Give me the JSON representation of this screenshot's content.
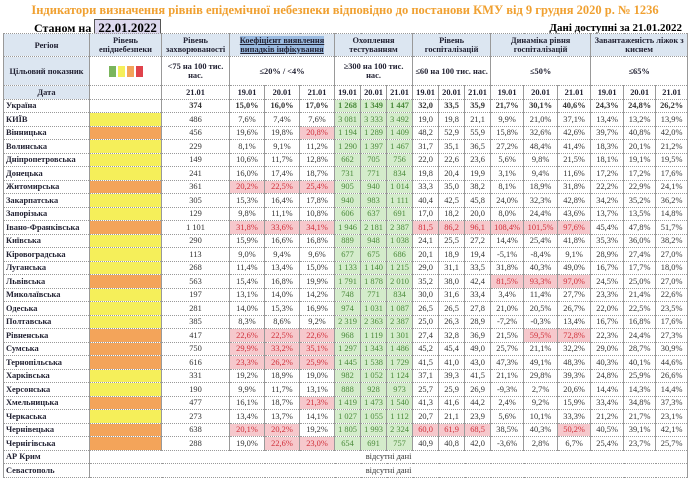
{
  "title": "Індикатори визначення рівнів епідемічної небезпеки відповідно до постанови КМУ від 9 грудня 2020 р. № 1236",
  "as_of_label": "Станом на",
  "as_of_date": "22.01.2022",
  "available_label": "Дані доступні за",
  "available_date": "21.01.2022",
  "colors": {
    "yellow": "#f5ef5a",
    "orange": "#f3a45a",
    "red_bg": "#f6c8cc",
    "green_bg": "#d4eccb",
    "legend": [
      "#7ab55c",
      "#f5ef5a",
      "#f3a45a",
      "#e0434b"
    ]
  },
  "headers": {
    "region": "Регіон",
    "level": "Рівень епіднебезпеки",
    "incidence": "Рівень захворюваності",
    "coef": "Коефіцієнт виявлення випадків інфікування",
    "testing": "Охоплення тестуванням",
    "hosp": "Рівень госпіталізацій",
    "dyn": "Динаміка рівня госпіталізацій",
    "oxygen": "Завантаженість ліжок з киснем",
    "target": "Цільовий показник",
    "t_incidence": "<75 на 100 тис. нас.",
    "t_coef": "≤20% / <4%",
    "t_testing": "≥300 на 100 тис. нас.",
    "t_hosp": "≤60 на 100 тис. нас.",
    "t_dyn": "≤50%",
    "t_oxygen": "≤65%",
    "date": "Дата",
    "inc_date": "21.01",
    "dates": [
      "19.01",
      "20.01",
      "21.01"
    ]
  },
  "no_data": "відсутні дані",
  "rows": [
    {
      "name": "Україна",
      "level": "none",
      "inc": "374",
      "v": [
        "15,0%",
        "16,0%",
        "17,0%",
        "1 268",
        "1 349",
        "1 447",
        "32,0",
        "33,5",
        "35,9",
        "21,7%",
        "30,1%",
        "40,6%",
        "24,3%",
        "24,8%",
        "26,2%"
      ],
      "red": []
    },
    {
      "name": "КИЇВ",
      "level": "yellow",
      "inc": "486",
      "v": [
        "7,6%",
        "7,4%",
        "7,6%",
        "3 081",
        "3 333",
        "3 492",
        "19,0",
        "19,8",
        "21,1",
        "9,9%",
        "21,0%",
        "37,1%",
        "13,4%",
        "13,2%",
        "13,9%"
      ],
      "red": []
    },
    {
      "name": "Вінницька",
      "level": "orange",
      "inc": "456",
      "v": [
        "19,6%",
        "19,8%",
        "20,8%",
        "1 194",
        "1 289",
        "1 409",
        "48,2",
        "52,9",
        "55,9",
        "15,8%",
        "32,6%",
        "42,6%",
        "39,7%",
        "40,8%",
        "42,0%"
      ],
      "red": [
        2
      ]
    },
    {
      "name": "Волинська",
      "level": "yellow",
      "inc": "229",
      "v": [
        "8,1%",
        "9,1%",
        "11,2%",
        "1 290",
        "1 397",
        "1 467",
        "31,7",
        "35,1",
        "36,5",
        "27,2%",
        "48,4%",
        "41,4%",
        "18,3%",
        "20,1%",
        "21,2%"
      ],
      "red": []
    },
    {
      "name": "Дніпропетровська",
      "level": "yellow",
      "inc": "149",
      "v": [
        "10,6%",
        "11,7%",
        "12,8%",
        "662",
        "705",
        "756",
        "22,0",
        "22,6",
        "23,6",
        "5,6%",
        "9,8%",
        "21,5%",
        "18,1%",
        "19,1%",
        "19,5%"
      ],
      "red": []
    },
    {
      "name": "Донецька",
      "level": "yellow",
      "inc": "241",
      "v": [
        "16,0%",
        "17,4%",
        "18,7%",
        "731",
        "771",
        "834",
        "19,8",
        "20,4",
        "19,9",
        "3,1%",
        "9,4%",
        "11,6%",
        "17,2%",
        "17,2%",
        "17,6%"
      ],
      "red": []
    },
    {
      "name": "Житомирська",
      "level": "orange",
      "inc": "361",
      "v": [
        "20,2%",
        "22,5%",
        "25,4%",
        "905",
        "940",
        "1 014",
        "33,3",
        "35,0",
        "38,2",
        "8,1%",
        "18,9%",
        "31,8%",
        "22,2%",
        "22,9%",
        "24,1%"
      ],
      "red": [
        0,
        1,
        2
      ]
    },
    {
      "name": "Закарпатська",
      "level": "yellow",
      "inc": "305",
      "v": [
        "15,3%",
        "16,4%",
        "17,8%",
        "940",
        "983",
        "1 111",
        "40,4",
        "42,5",
        "45,8",
        "24,0%",
        "32,3%",
        "42,8%",
        "34,2%",
        "35,2%",
        "36,2%"
      ],
      "red": []
    },
    {
      "name": "Запорізька",
      "level": "yellow",
      "inc": "129",
      "v": [
        "9,8%",
        "11,1%",
        "10,8%",
        "606",
        "637",
        "691",
        "17,0",
        "18,2",
        "20,0",
        "8,0%",
        "24,4%",
        "43,6%",
        "13,7%",
        "13,5%",
        "14,8%"
      ],
      "red": []
    },
    {
      "name": "Івано-Франківська",
      "level": "orange",
      "inc": "1 101",
      "v": [
        "31,8%",
        "33,6%",
        "34,1%",
        "1 946",
        "2 181",
        "2 387",
        "81,5",
        "86,2",
        "96,1",
        "108,4%",
        "101,5%",
        "97,6%",
        "45,4%",
        "47,8%",
        "51,7%"
      ],
      "red": [
        0,
        1,
        2,
        6,
        7,
        8,
        9,
        10,
        11
      ]
    },
    {
      "name": "Київська",
      "level": "yellow",
      "inc": "290",
      "v": [
        "15,9%",
        "16,6%",
        "16,8%",
        "889",
        "948",
        "1 038",
        "24,1",
        "25,5",
        "27,2",
        "14,4%",
        "25,4%",
        "41,8%",
        "35,3%",
        "36,0%",
        "38,2%"
      ],
      "red": []
    },
    {
      "name": "Кіровоградська",
      "level": "yellow",
      "inc": "113",
      "v": [
        "9,0%",
        "9,4%",
        "9,6%",
        "677",
        "675",
        "686",
        "20,1",
        "18,9",
        "19,4",
        "-5,1%",
        "-8,4%",
        "9,1%",
        "28,9%",
        "27,4%",
        "27,0%"
      ],
      "red": []
    },
    {
      "name": "Луганська",
      "level": "yellow",
      "inc": "268",
      "v": [
        "11,4%",
        "13,4%",
        "15,0%",
        "1 133",
        "1 140",
        "1 215",
        "29,0",
        "31,1",
        "33,5",
        "31,8%",
        "40,3%",
        "49,0%",
        "16,7%",
        "17,7%",
        "18,0%"
      ],
      "red": []
    },
    {
      "name": "Львівська",
      "level": "orange",
      "inc": "563",
      "v": [
        "15,4%",
        "16,8%",
        "19,9%",
        "1 791",
        "1 878",
        "2 010",
        "35,2",
        "38,0",
        "42,4",
        "81,5%",
        "93,3%",
        "97,0%",
        "24,5%",
        "25,0%",
        "27,0%"
      ],
      "red": [
        9,
        10,
        11
      ]
    },
    {
      "name": "Миколаївська",
      "level": "yellow",
      "inc": "197",
      "v": [
        "13,1%",
        "14,0%",
        "14,2%",
        "748",
        "771",
        "834",
        "30,0",
        "31,6",
        "33,4",
        "3,4%",
        "11,4%",
        "27,7%",
        "23,3%",
        "21,4%",
        "22,6%"
      ],
      "red": []
    },
    {
      "name": "Одеська",
      "level": "yellow",
      "inc": "281",
      "v": [
        "14,0%",
        "15,3%",
        "16,9%",
        "974",
        "1 031",
        "1 087",
        "26,5",
        "26,5",
        "27,8",
        "21,0%",
        "20,5%",
        "26,7%",
        "22,0%",
        "22,5%",
        "23,5%"
      ],
      "red": []
    },
    {
      "name": "Полтавська",
      "level": "yellow",
      "inc": "385",
      "v": [
        "8,3%",
        "8,6%",
        "9,2%",
        "2 319",
        "2 363",
        "2 387",
        "25,0",
        "26,3",
        "28,9",
        "-7,2%",
        "-0,3%",
        "13,4%",
        "16,7%",
        "16,8%",
        "17,6%"
      ],
      "red": []
    },
    {
      "name": "Рівненська",
      "level": "orange",
      "inc": "417",
      "v": [
        "22,6%",
        "22,5%",
        "22,6%",
        "968",
        "1 119",
        "1 301",
        "27,4",
        "32,8",
        "36,9",
        "21,5%",
        "59,5%",
        "72,8%",
        "22,3%",
        "24,4%",
        "27,3%"
      ],
      "red": [
        0,
        1,
        2,
        10,
        11
      ]
    },
    {
      "name": "Сумська",
      "level": "orange",
      "inc": "750",
      "v": [
        "29,9%",
        "33,2%",
        "35,1%",
        "1 297",
        "1 343",
        "1 486",
        "45,2",
        "45,4",
        "49,0",
        "25,7%",
        "21,1%",
        "32,2%",
        "29,0%",
        "28,7%",
        "30,9%"
      ],
      "red": [
        0,
        1,
        2
      ]
    },
    {
      "name": "Тернопільська",
      "level": "orange",
      "inc": "616",
      "v": [
        "23,3%",
        "26,2%",
        "25,9%",
        "1 445",
        "1 538",
        "1 729",
        "41,5",
        "41,0",
        "43,0",
        "47,3%",
        "49,1%",
        "48,3%",
        "40,3%",
        "40,1%",
        "44,6%"
      ],
      "red": [
        0,
        1,
        2
      ]
    },
    {
      "name": "Харківська",
      "level": "yellow",
      "inc": "331",
      "v": [
        "19,2%",
        "18,9%",
        "19,0%",
        "982",
        "1 052",
        "1 124",
        "37,1",
        "39,3",
        "41,5",
        "21,1%",
        "29,8%",
        "39,3%",
        "24,8%",
        "25,9%",
        "26,6%"
      ],
      "red": []
    },
    {
      "name": "Херсонська",
      "level": "yellow",
      "inc": "190",
      "v": [
        "9,9%",
        "11,7%",
        "13,1%",
        "888",
        "928",
        "973",
        "25,7",
        "25,9",
        "26,9",
        "-9,3%",
        "2,7%",
        "20,6%",
        "14,4%",
        "14,3%",
        "14,4%"
      ],
      "red": []
    },
    {
      "name": "Хмельницька",
      "level": "orange",
      "inc": "477",
      "v": [
        "16,1%",
        "18,7%",
        "21,3%",
        "1 419",
        "1 473",
        "1 540",
        "41,3",
        "41,6",
        "44,2",
        "2,4%",
        "9,2%",
        "15,9%",
        "33,4%",
        "34,8%",
        "37,3%"
      ],
      "red": [
        2
      ]
    },
    {
      "name": "Черкаська",
      "level": "yellow",
      "inc": "273",
      "v": [
        "13,4%",
        "13,7%",
        "14,1%",
        "1 027",
        "1 055",
        "1 112",
        "20,7",
        "21,1",
        "23,9",
        "5,6%",
        "10,1%",
        "33,3%",
        "21,2%",
        "21,7%",
        "23,1%"
      ],
      "red": []
    },
    {
      "name": "Чернівецька",
      "level": "orange",
      "inc": "638",
      "v": [
        "20,1%",
        "20,2%",
        "19,2%",
        "1 805",
        "1 993",
        "2 324",
        "60,0",
        "61,9",
        "68,5",
        "38,5%",
        "40,3%",
        "50,2%",
        "40,5%",
        "39,1%",
        "42,1%"
      ],
      "red": [
        0,
        1,
        6,
        7,
        8,
        11
      ]
    },
    {
      "name": "Чернігівська",
      "level": "orange",
      "inc": "288",
      "v": [
        "19,0%",
        "22,6%",
        "23,0%",
        "654",
        "691",
        "757",
        "40,9",
        "40,8",
        "42,0",
        "-3,6%",
        "2,8%",
        "6,7%",
        "25,4%",
        "23,7%",
        "25,7%"
      ],
      "red": [
        1,
        2
      ]
    }
  ],
  "missing_rows": [
    "АР Крим",
    "Севастополь"
  ]
}
